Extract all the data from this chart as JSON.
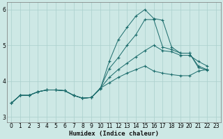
{
  "xlabel": "Humidex (Indice chaleur)",
  "bg_color": "#cde8e5",
  "grid_color": "#aacfcc",
  "line_color": "#1a6b6b",
  "xlim": [
    -0.5,
    23.5
  ],
  "ylim": [
    2.85,
    6.2
  ],
  "yticks": [
    3,
    4,
    5,
    6
  ],
  "xticks": [
    0,
    1,
    2,
    3,
    4,
    5,
    6,
    7,
    8,
    9,
    10,
    11,
    12,
    13,
    14,
    15,
    16,
    17,
    18,
    19,
    20,
    21,
    22,
    23
  ],
  "lines": [
    {
      "x": [
        0,
        1,
        2,
        3,
        4,
        5,
        6,
        7,
        8,
        9,
        10,
        11,
        12,
        13,
        14,
        15,
        16,
        17,
        18,
        19,
        20,
        21,
        22,
        23
      ],
      "y": [
        3.38,
        3.6,
        3.6,
        3.7,
        3.75,
        3.75,
        3.73,
        3.6,
        3.52,
        3.54,
        3.78,
        4.55,
        5.15,
        5.5,
        5.82,
        6.0,
        5.75,
        5.7,
        4.95,
        4.78,
        4.78,
        4.38,
        4.3,
        null
      ]
    },
    {
      "x": [
        0,
        1,
        2,
        3,
        4,
        5,
        6,
        7,
        8,
        9,
        10,
        11,
        12,
        13,
        14,
        15,
        16,
        17,
        18,
        19,
        20,
        21,
        22,
        23
      ],
      "y": [
        3.38,
        3.6,
        3.6,
        3.7,
        3.75,
        3.75,
        3.73,
        3.6,
        3.52,
        3.54,
        3.8,
        4.35,
        4.65,
        5.0,
        5.3,
        5.72,
        5.72,
        4.95,
        4.88,
        4.78,
        4.78,
        4.42,
        4.32,
        null
      ]
    },
    {
      "x": [
        0,
        1,
        2,
        3,
        4,
        5,
        6,
        7,
        8,
        9,
        10,
        11,
        12,
        13,
        14,
        15,
        16,
        17,
        18,
        19,
        20,
        21,
        22,
        23
      ],
      "y": [
        3.38,
        3.6,
        3.6,
        3.7,
        3.75,
        3.75,
        3.73,
        3.6,
        3.52,
        3.54,
        3.8,
        4.1,
        4.32,
        4.5,
        4.68,
        4.85,
        5.0,
        4.85,
        4.82,
        4.72,
        4.72,
        4.55,
        4.42,
        null
      ]
    },
    {
      "x": [
        0,
        1,
        2,
        3,
        4,
        5,
        6,
        7,
        8,
        9,
        10,
        11,
        12,
        13,
        14,
        15,
        16,
        17,
        18,
        19,
        20,
        21,
        22,
        23
      ],
      "y": [
        3.38,
        3.6,
        3.6,
        3.7,
        3.75,
        3.75,
        3.73,
        3.6,
        3.52,
        3.54,
        3.8,
        3.95,
        4.1,
        4.22,
        4.32,
        4.42,
        4.28,
        4.22,
        4.18,
        4.15,
        4.15,
        4.28,
        4.32,
        null
      ]
    }
  ]
}
